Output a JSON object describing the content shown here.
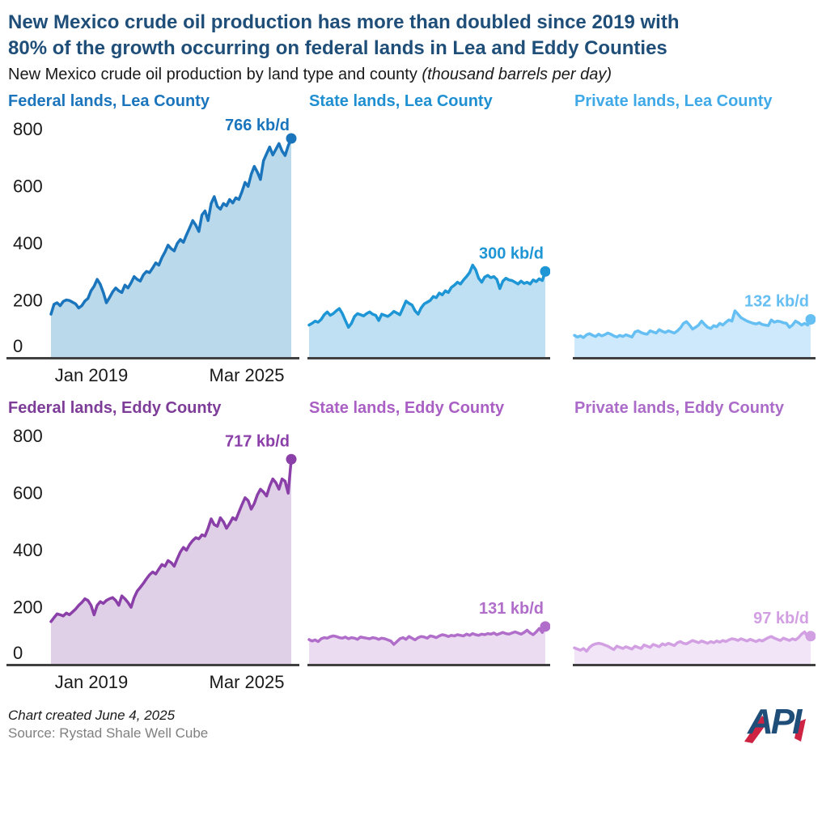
{
  "header": {
    "title_line1": "New Mexico crude oil production has more than doubled since 2019 with",
    "title_line2": "80% of the growth occurring on federal lands in Lea and Eddy Counties",
    "title_color": "#1F4E79",
    "subtitle_plain": "New Mexico crude oil production by land type and county ",
    "subtitle_italic": "(thousand barrels per day)"
  },
  "footer": {
    "created_note": "Chart created June 4, 2025",
    "source": "Source: Rystad Shale Well Cube",
    "logo_text": "API",
    "logo_navy": "#1F4E79",
    "logo_red": "#CE2342"
  },
  "chart_data": {
    "type": "area",
    "title": "New Mexico crude oil production by land type and county",
    "ylabel": "thousand barrels per day",
    "ylim": [
      0,
      800
    ],
    "y_ticks": [
      800,
      600,
      400,
      200,
      0
    ],
    "x_start_label": "Jan 2019",
    "x_end_label": "Mar 2025",
    "x_frequency": "monthly",
    "grid": false,
    "legend_position": "none",
    "axis_color": "#404040",
    "panels": [
      {
        "name": "federal-lea",
        "title": "Federal lands, Lea County",
        "title_color": "#1B75BC",
        "line_color": "#1B75BC",
        "fill_color": "#BAD9EB",
        "annotation": "766 kb/d",
        "end_value": 766,
        "axis_labels": true,
        "values": [
          150,
          185,
          190,
          180,
          195,
          200,
          198,
          192,
          186,
          172,
          180,
          196,
          205,
          232,
          248,
          272,
          255,
          226,
          190,
          208,
          228,
          242,
          232,
          226,
          252,
          242,
          260,
          282,
          272,
          266,
          288,
          300,
          296,
          312,
          330,
          322,
          348,
          368,
          392,
          380,
          372,
          398,
          412,
          402,
          428,
          452,
          478,
          462,
          440,
          498,
          512,
          478,
          538,
          562,
          528,
          518,
          538,
          530,
          552,
          540,
          558,
          552,
          580,
          612,
          598,
          640,
          668,
          648,
          622,
          688,
          712,
          736,
          708,
          728,
          748,
          722,
          706,
          740,
          766
        ]
      },
      {
        "name": "state-lea",
        "title": "State lands, Lea County",
        "title_color": "#1E8FD0",
        "line_color": "#1E95D4",
        "fill_color": "#BFE0F2",
        "annotation": "300 kb/d",
        "end_value": 300,
        "axis_labels": false,
        "values": [
          112,
          118,
          126,
          122,
          132,
          148,
          158,
          146,
          152,
          162,
          170,
          152,
          128,
          104,
          118,
          142,
          152,
          148,
          144,
          152,
          158,
          150,
          146,
          128,
          150,
          146,
          142,
          150,
          160,
          154,
          148,
          172,
          196,
          188,
          182,
          162,
          150,
          172,
          186,
          192,
          198,
          212,
          208,
          224,
          218,
          232,
          226,
          244,
          252,
          262,
          256,
          270,
          282,
          296,
          322,
          306,
          276,
          262,
          280,
          286,
          278,
          282,
          272,
          240,
          266,
          276,
          270,
          268,
          262,
          256,
          266,
          258,
          262,
          256,
          270,
          264,
          274,
          268,
          300
        ]
      },
      {
        "name": "private-lea",
        "title": "Private lands, Lea County",
        "title_color": "#3FA9E8",
        "line_color": "#66BFF2",
        "fill_color": "#CDE9FB",
        "annotation": "132 kb/d",
        "end_value": 132,
        "axis_labels": false,
        "values": [
          76,
          70,
          74,
          68,
          78,
          82,
          76,
          72,
          80,
          74,
          78,
          84,
          80,
          74,
          70,
          76,
          72,
          78,
          74,
          70,
          88,
          92,
          86,
          82,
          80,
          92,
          88,
          84,
          96,
          90,
          86,
          92,
          88,
          84,
          92,
          102,
          118,
          124,
          112,
          98,
          104,
          112,
          126,
          114,
          104,
          100,
          110,
          106,
          118,
          112,
          122,
          130,
          126,
          162,
          150,
          138,
          132,
          126,
          122,
          118,
          116,
          120,
          114,
          112,
          110,
          130,
          122,
          126,
          124,
          120,
          118,
          104,
          112,
          126,
          120,
          112,
          118,
          112,
          132
        ]
      },
      {
        "name": "federal-eddy",
        "title": "Federal lands, Eddy County",
        "title_color": "#7D3C98",
        "line_color": "#8B3FA8",
        "fill_color": "#DFD0E8",
        "annotation": "717 kb/d",
        "end_value": 717,
        "axis_labels": true,
        "values": [
          148,
          162,
          175,
          172,
          168,
          178,
          172,
          182,
          192,
          205,
          215,
          228,
          222,
          205,
          172,
          205,
          218,
          212,
          222,
          228,
          232,
          222,
          205,
          238,
          228,
          215,
          198,
          232,
          255,
          268,
          282,
          298,
          312,
          322,
          315,
          332,
          348,
          342,
          362,
          355,
          342,
          368,
          392,
          408,
          398,
          418,
          432,
          442,
          438,
          452,
          448,
          475,
          508,
          488,
          482,
          512,
          498,
          475,
          492,
          512,
          505,
          532,
          558,
          582,
          572,
          542,
          562,
          592,
          612,
          602,
          588,
          622,
          648,
          635,
          612,
          648,
          640,
          598,
          717
        ]
      },
      {
        "name": "state-eddy",
        "title": "State lands, Eddy County",
        "title_color": "#A95FC4",
        "line_color": "#B06DC9",
        "fill_color": "#EBDCF2",
        "annotation": "131 kb/d",
        "end_value": 131,
        "axis_labels": false,
        "values": [
          85,
          80,
          84,
          78,
          88,
          92,
          90,
          95,
          98,
          96,
          92,
          90,
          94,
          88,
          92,
          90,
          86,
          94,
          92,
          90,
          88,
          92,
          90,
          86,
          90,
          88,
          84,
          80,
          68,
          78,
          88,
          92,
          86,
          96,
          90,
          84,
          92,
          96,
          94,
          90,
          98,
          96,
          92,
          98,
          102,
          100,
          96,
          100,
          98,
          102,
          100,
          98,
          104,
          100,
          106,
          102,
          100,
          104,
          102,
          106,
          104,
          108,
          102,
          106,
          110,
          106,
          104,
          108,
          112,
          108,
          104,
          110,
          118,
          108,
          102,
          112,
          124,
          110,
          131
        ]
      },
      {
        "name": "private-eddy",
        "title": "Private lands, Eddy County",
        "title_color": "#AB6BC8",
        "line_color": "#D29FE3",
        "fill_color": "#F3E5F8",
        "annotation": "97 kb/d",
        "end_value": 97,
        "axis_labels": false,
        "values": [
          56,
          52,
          48,
          54,
          44,
          58,
          66,
          70,
          72,
          70,
          66,
          62,
          56,
          50,
          62,
          58,
          54,
          60,
          56,
          52,
          62,
          58,
          54,
          66,
          62,
          58,
          68,
          64,
          60,
          70,
          66,
          72,
          68,
          64,
          74,
          78,
          72,
          70,
          76,
          82,
          78,
          74,
          80,
          76,
          72,
          78,
          74,
          80,
          76,
          82,
          78,
          84,
          88,
          86,
          82,
          88,
          84,
          80,
          86,
          82,
          78,
          84,
          80,
          86,
          92,
          96,
          90,
          86,
          82,
          90,
          86,
          82,
          88,
          84,
          92,
          104,
          112,
          94,
          97
        ]
      }
    ]
  }
}
